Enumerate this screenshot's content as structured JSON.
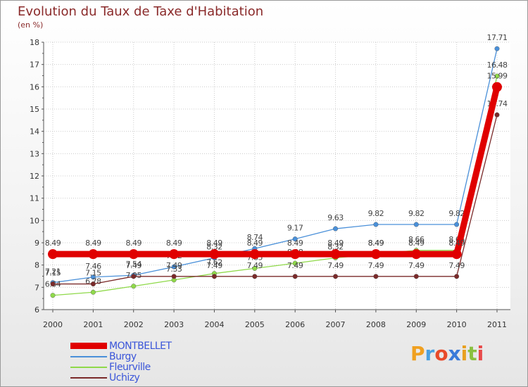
{
  "chart_data": {
    "type": "line",
    "title": "Evolution du Taux de Taxe d'Habitation",
    "subtitle": "(en %)",
    "x": [
      "2000",
      "2001",
      "2002",
      "2003",
      "2004",
      "2005",
      "2006",
      "2007",
      "2008",
      "2009",
      "2010",
      "2011"
    ],
    "ylim": [
      6,
      18
    ],
    "yticks": [
      "6",
      "7",
      "8",
      "9",
      "10",
      "11",
      "12",
      "13",
      "14",
      "15",
      "16",
      "17",
      "18"
    ],
    "series": [
      {
        "name": "Burgy",
        "color": "#4a90d9",
        "values": [
          7.21,
          7.46,
          7.54,
          7.92,
          8.32,
          8.74,
          9.17,
          9.63,
          9.82,
          9.82,
          9.82,
          17.71
        ],
        "labels": [
          "7.21",
          "7.46",
          "7.54",
          "7.92",
          "8.32",
          "8.74",
          "9.17",
          "9.63",
          "9.82",
          "9.82",
          "9.82",
          "17.71"
        ]
      },
      {
        "name": "Fleurville",
        "color": "#8fd94a",
        "values": [
          6.64,
          6.78,
          7.05,
          7.33,
          7.62,
          7.85,
          8.08,
          8.32,
          8.49,
          8.66,
          8.66,
          16.48
        ],
        "labels": [
          "6.64",
          "6.78",
          "7.05",
          "7.33",
          "7.62",
          "7.85",
          "8.08",
          "8.32",
          "8.49",
          "8.66",
          "8.66",
          "16.48"
        ]
      },
      {
        "name": "Uchizy",
        "color": "#7a2a2a",
        "values": [
          7.15,
          7.15,
          7.49,
          7.49,
          7.49,
          7.49,
          7.49,
          7.49,
          7.49,
          7.49,
          7.49,
          14.74
        ],
        "labels": [
          "7.15",
          "7.15",
          "7.49",
          "7.49",
          "7.49",
          "7.49",
          "7.49",
          "7.49",
          "7.49",
          "7.49",
          "7.49",
          "14.74"
        ]
      },
      {
        "name": "MONTBELLET",
        "color": "#e00000",
        "values": [
          8.49,
          8.49,
          8.49,
          8.49,
          8.49,
          8.49,
          8.49,
          8.49,
          8.49,
          8.49,
          8.49,
          15.99
        ],
        "labels": [
          "8.49",
          "8.49",
          "8.49",
          "8.49",
          "8.49",
          "8.49",
          "8.49",
          "8.49",
          "8.49",
          "8.49",
          "8.49",
          "15.99"
        ]
      }
    ],
    "legend": [
      "MONTBELLET",
      "Burgy",
      "Fleurville",
      "Uchizy"
    ]
  },
  "brand": {
    "letters": [
      "P",
      "r",
      "o",
      "x",
      "i",
      "t",
      "i"
    ],
    "colors": [
      "#f0a020",
      "#4aa0e0",
      "#e84a2a",
      "#3a7ad9",
      "#e8a020",
      "#8ac040",
      "#e84a4a"
    ]
  }
}
